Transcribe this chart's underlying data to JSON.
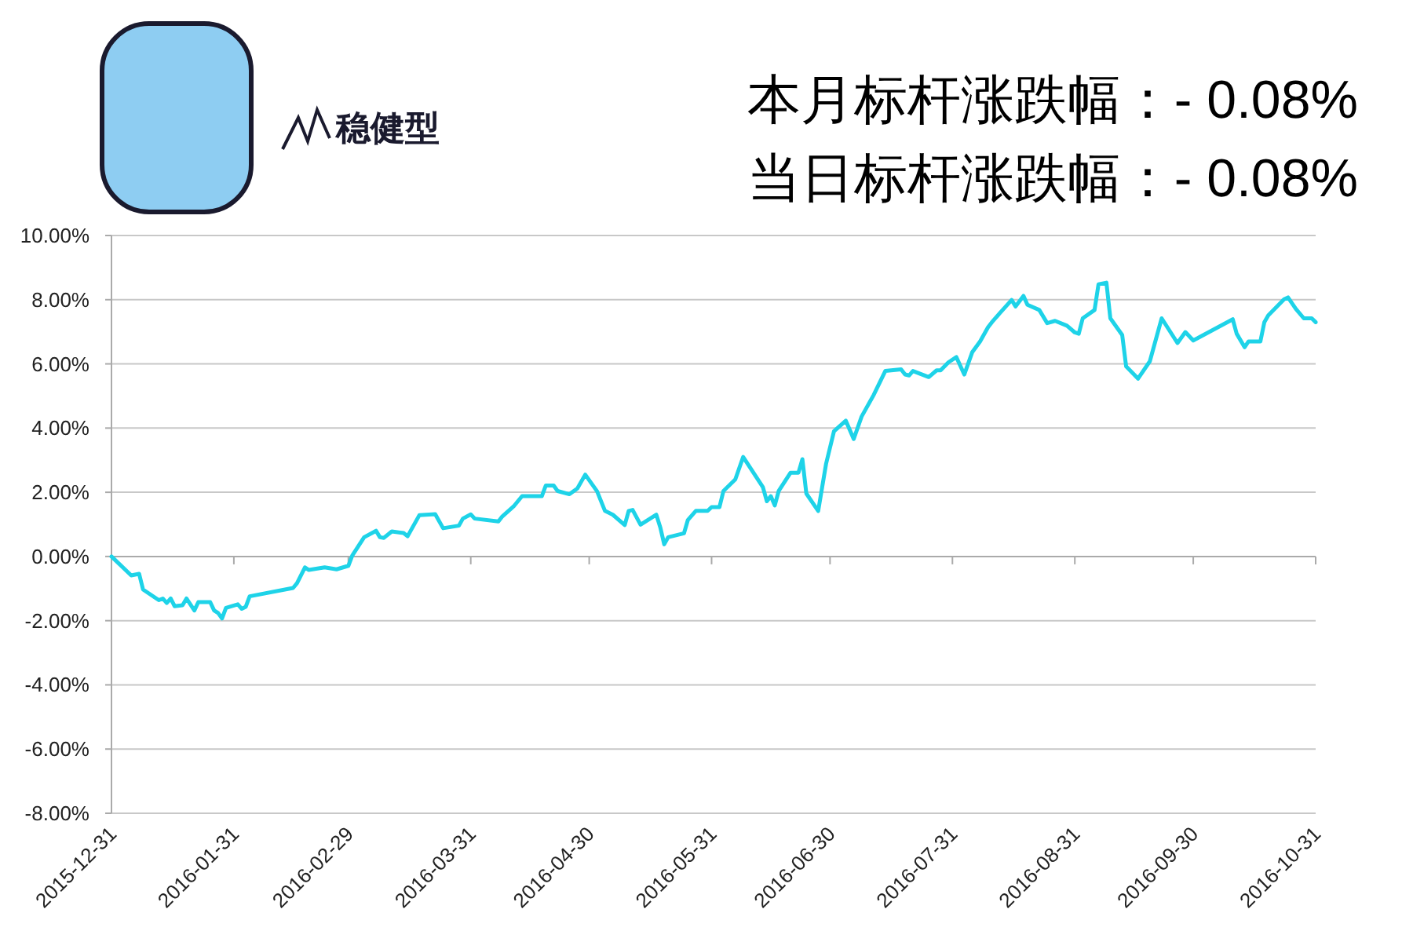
{
  "chart_data": {
    "type": "line",
    "title": "本月标杆涨跌幅：- 0.08%",
    "subtitle": "当日标杆涨跌幅：- 0.08%",
    "annotations": [
      "稳健型"
    ],
    "x": [
      "2015-12-31",
      "2016-01-05",
      "2016-01-07",
      "2016-01-08",
      "2016-01-12",
      "2016-01-13",
      "2016-01-14",
      "2016-01-15",
      "2016-01-16",
      "2016-01-18",
      "2016-01-19",
      "2016-01-21",
      "2016-01-22",
      "2016-01-25",
      "2016-01-26",
      "2016-01-27",
      "2016-01-28",
      "2016-01-29",
      "2016-02-01",
      "2016-02-02",
      "2016-02-03",
      "2016-02-04",
      "2016-02-15",
      "2016-02-16",
      "2016-02-18",
      "2016-02-19",
      "2016-02-23",
      "2016-02-26",
      "2016-02-29",
      "2016-03-01",
      "2016-03-04",
      "2016-03-07",
      "2016-03-08",
      "2016-03-09",
      "2016-03-11",
      "2016-03-14",
      "2016-03-15",
      "2016-03-18",
      "2016-03-22",
      "2016-03-24",
      "2016-03-28",
      "2016-03-29",
      "2016-03-31",
      "2016-04-01",
      "2016-04-07",
      "2016-04-08",
      "2016-04-11",
      "2016-04-13",
      "2016-04-18",
      "2016-04-19",
      "2016-04-21",
      "2016-04-22",
      "2016-04-25",
      "2016-04-27",
      "2016-04-29",
      "2016-05-02",
      "2016-05-04",
      "2016-05-06",
      "2016-05-09",
      "2016-05-10",
      "2016-05-11",
      "2016-05-13",
      "2016-05-17",
      "2016-05-18",
      "2016-05-19",
      "2016-05-20",
      "2016-05-24",
      "2016-05-25",
      "2016-05-27",
      "2016-05-30",
      "2016-05-31",
      "2016-06-02",
      "2016-06-03",
      "2016-06-06",
      "2016-06-08",
      "2016-06-13",
      "2016-06-14",
      "2016-06-15",
      "2016-06-16",
      "2016-06-17",
      "2016-06-20",
      "2016-06-22",
      "2016-06-23",
      "2016-06-24",
      "2016-06-27",
      "2016-06-29",
      "2016-07-01",
      "2016-07-04",
      "2016-07-06",
      "2016-07-08",
      "2016-07-11",
      "2016-07-14",
      "2016-07-18",
      "2016-07-19",
      "2016-07-20",
      "2016-07-21",
      "2016-07-25",
      "2016-07-27",
      "2016-07-28",
      "2016-07-30",
      "2016-08-01",
      "2016-08-03",
      "2016-08-05",
      "2016-08-07",
      "2016-08-09",
      "2016-08-10",
      "2016-08-12",
      "2016-08-15",
      "2016-08-16",
      "2016-08-18",
      "2016-08-19",
      "2016-08-22",
      "2016-08-24",
      "2016-08-26",
      "2016-08-29",
      "2016-08-31",
      "2016-09-01",
      "2016-09-02",
      "2016-09-05",
      "2016-09-06",
      "2016-09-08",
      "2016-09-09",
      "2016-09-12",
      "2016-09-13",
      "2016-09-16",
      "2016-09-19",
      "2016-09-22",
      "2016-09-26",
      "2016-09-28",
      "2016-09-30",
      "2016-10-10",
      "2016-10-11",
      "2016-10-13",
      "2016-10-14",
      "2016-10-17",
      "2016-10-18",
      "2016-10-19",
      "2016-10-21",
      "2016-10-23",
      "2016-10-24",
      "2016-10-26",
      "2016-10-28",
      "2016-10-30",
      "2016-10-31"
    ],
    "series": [
      {
        "color": "#1ed3e8",
        "values": [
          0.0,
          -0.59,
          -0.54,
          -1.03,
          -1.36,
          -1.31,
          -1.45,
          -1.31,
          -1.55,
          -1.52,
          -1.31,
          -1.68,
          -1.42,
          -1.42,
          -1.68,
          -1.76,
          -1.93,
          -1.6,
          -1.49,
          -1.63,
          -1.57,
          -1.24,
          -0.98,
          -0.83,
          -0.34,
          -0.42,
          -0.34,
          -0.4,
          -0.29,
          0.03,
          0.6,
          0.8,
          0.6,
          0.58,
          0.78,
          0.73,
          0.63,
          1.29,
          1.32,
          0.88,
          0.96,
          1.18,
          1.31,
          1.18,
          1.09,
          1.25,
          1.58,
          1.88,
          1.88,
          2.21,
          2.21,
          2.04,
          1.94,
          2.12,
          2.55,
          2.03,
          1.42,
          1.3,
          0.98,
          1.42,
          1.45,
          0.99,
          1.3,
          0.91,
          0.38,
          0.6,
          0.72,
          1.14,
          1.42,
          1.42,
          1.54,
          1.54,
          2.04,
          2.4,
          3.1,
          2.16,
          1.72,
          1.88,
          1.59,
          2.04,
          2.61,
          2.61,
          3.03,
          1.96,
          1.42,
          2.89,
          3.9,
          4.23,
          3.66,
          4.36,
          5.02,
          5.78,
          5.83,
          5.67,
          5.64,
          5.78,
          5.59,
          5.8,
          5.8,
          6.05,
          6.21,
          5.67,
          6.36,
          6.7,
          7.14,
          7.3,
          7.58,
          7.99,
          7.79,
          8.12,
          7.84,
          7.68,
          7.27,
          7.34,
          7.19,
          6.98,
          6.94,
          7.42,
          7.68,
          8.48,
          8.53,
          7.42,
          6.9,
          5.92,
          5.54,
          6.08,
          7.42,
          6.65,
          6.99,
          6.73,
          7.39,
          6.94,
          6.52,
          6.7,
          6.7,
          7.3,
          7.51,
          7.76,
          8.01,
          8.07,
          7.71,
          7.42,
          7.42,
          7.3
        ]
      }
    ],
    "xlim": [
      "2015-12-31",
      "2016-10-31"
    ],
    "xticks": [
      "2015-12-31",
      "2016-01-31",
      "2016-02-29",
      "2016-03-31",
      "2016-04-30",
      "2016-05-31",
      "2016-06-30",
      "2016-07-31",
      "2016-08-31",
      "2016-09-30",
      "2016-10-31"
    ],
    "ylim": [
      -8,
      10
    ],
    "yticks": [
      {
        "value": -8,
        "label": "-8.00%"
      },
      {
        "value": -6,
        "label": "-6.00%"
      },
      {
        "value": -4,
        "label": "-4.00%"
      },
      {
        "value": -2,
        "label": "-2.00%"
      },
      {
        "value": 0,
        "label": "0.00%"
      },
      {
        "value": 2,
        "label": "2.00%"
      },
      {
        "value": 4,
        "label": "4.00%"
      },
      {
        "value": 6,
        "label": "6.00%"
      },
      {
        "value": 8,
        "label": "8.00%"
      },
      {
        "value": 10,
        "label": "10.00%"
      }
    ],
    "grid": "y"
  }
}
